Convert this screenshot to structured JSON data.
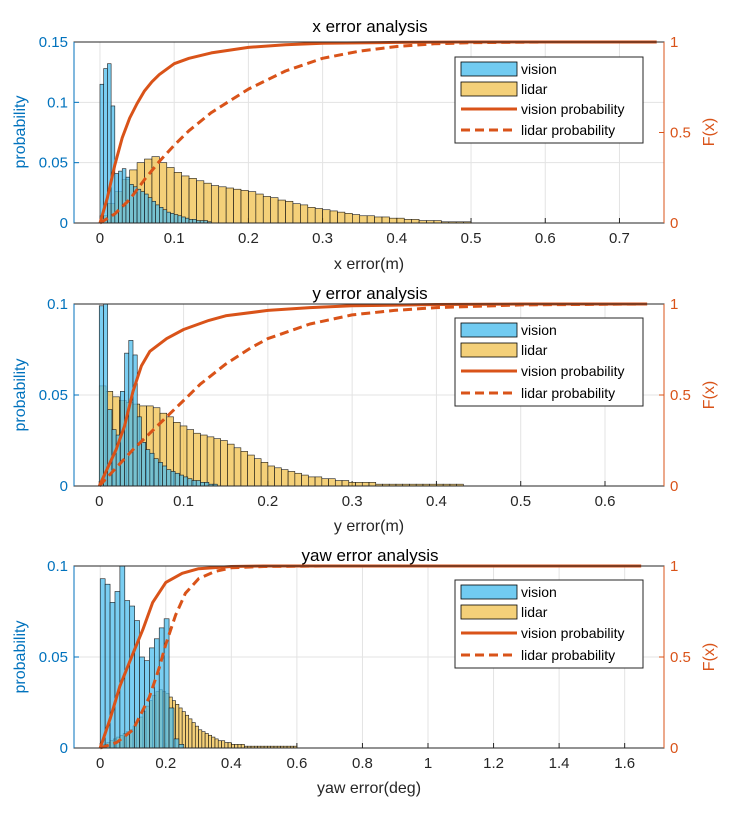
{
  "chart_data": [
    {
      "type": "bar",
      "title": "x error analysis",
      "xlabel": "x error(m)",
      "ylabel": "probability",
      "y2label": "F(x)",
      "xlim": [
        -0.035,
        0.76
      ],
      "ylim": [
        0,
        0.15
      ],
      "y2lim": [
        0,
        1
      ],
      "xticks": [
        "0",
        "0.1",
        "0.2",
        "0.3",
        "0.4",
        "0.5",
        "0.6",
        "0.7"
      ],
      "yticks": [
        "0",
        "0.05",
        "0.1",
        "0.15"
      ],
      "y2ticks": [
        "0",
        "0.5",
        "1"
      ],
      "grid": true,
      "legend_position": "top-right",
      "colors": {
        "vision": "#4DBEEE",
        "lidar": "#EDB120",
        "cdf": "#D95319",
        "left_axis": "#0072BD"
      },
      "series": [
        {
          "name": "vision",
          "kind": "histogram",
          "bin_start": 0,
          "bin_width": 0.005,
          "values": [
            0.115,
            0.128,
            0.132,
            0.097,
            0.041,
            0.043,
            0.045,
            0.038,
            0.032,
            0.03,
            0.028,
            0.026,
            0.024,
            0.021,
            0.018,
            0.015,
            0.013,
            0.011,
            0.009,
            0.008,
            0.007,
            0.006,
            0.005,
            0.004,
            0.003,
            0.003,
            0.002,
            0.002,
            0.002,
            0.001
          ]
        },
        {
          "name": "lidar",
          "kind": "histogram",
          "bin_start": 0,
          "bin_width": 0.01,
          "values": [
            0.006,
            0.016,
            0.026,
            0.036,
            0.044,
            0.05,
            0.053,
            0.055,
            0.05,
            0.046,
            0.042,
            0.039,
            0.037,
            0.035,
            0.033,
            0.031,
            0.03,
            0.029,
            0.028,
            0.027,
            0.026,
            0.024,
            0.022,
            0.021,
            0.019,
            0.018,
            0.016,
            0.015,
            0.013,
            0.012,
            0.011,
            0.01,
            0.009,
            0.008,
            0.007,
            0.006,
            0.006,
            0.005,
            0.005,
            0.004,
            0.004,
            0.003,
            0.003,
            0.002,
            0.002,
            0.002,
            0.001,
            0.001,
            0.001,
            0.001
          ]
        },
        {
          "name": "vision probability",
          "kind": "cdf",
          "style": "solid",
          "points": [
            [
              0,
              0
            ],
            [
              0.01,
              0.14
            ],
            [
              0.02,
              0.32
            ],
            [
              0.03,
              0.47
            ],
            [
              0.04,
              0.58
            ],
            [
              0.05,
              0.66
            ],
            [
              0.06,
              0.73
            ],
            [
              0.07,
              0.78
            ],
            [
              0.08,
              0.82
            ],
            [
              0.1,
              0.88
            ],
            [
              0.12,
              0.91
            ],
            [
              0.15,
              0.94
            ],
            [
              0.2,
              0.97
            ],
            [
              0.25,
              0.985
            ],
            [
              0.3,
              0.993
            ],
            [
              0.4,
              0.998
            ],
            [
              0.5,
              1.0
            ],
            [
              0.75,
              1.0
            ]
          ]
        },
        {
          "name": "lidar probability",
          "kind": "cdf",
          "style": "dashed",
          "points": [
            [
              0,
              0
            ],
            [
              0.02,
              0.05
            ],
            [
              0.04,
              0.13
            ],
            [
              0.06,
              0.24
            ],
            [
              0.08,
              0.34
            ],
            [
              0.1,
              0.43
            ],
            [
              0.12,
              0.51
            ],
            [
              0.15,
              0.61
            ],
            [
              0.2,
              0.74
            ],
            [
              0.25,
              0.84
            ],
            [
              0.3,
              0.91
            ],
            [
              0.35,
              0.95
            ],
            [
              0.4,
              0.975
            ],
            [
              0.45,
              0.99
            ],
            [
              0.5,
              0.996
            ],
            [
              0.6,
              1.0
            ],
            [
              0.75,
              1.0
            ]
          ]
        }
      ]
    },
    {
      "type": "bar",
      "title": "y error analysis",
      "xlabel": "y error(m)",
      "ylabel": "probability",
      "y2label": "F(x)",
      "xlim": [
        -0.03,
        0.67
      ],
      "ylim": [
        0,
        0.1
      ],
      "y2lim": [
        0,
        1
      ],
      "xticks": [
        "0",
        "0.1",
        "0.2",
        "0.3",
        "0.4",
        "0.5",
        "0.6"
      ],
      "yticks": [
        "0",
        "0.05",
        "0.1"
      ],
      "y2ticks": [
        "0",
        "0.5",
        "1"
      ],
      "grid": true,
      "legend_position": "top-right",
      "colors": {
        "vision": "#4DBEEE",
        "lidar": "#EDB120",
        "cdf": "#D95319",
        "left_axis": "#0072BD"
      },
      "series": [
        {
          "name": "vision",
          "kind": "histogram",
          "bin_start": 0,
          "bin_width": 0.005,
          "values": [
            0.099,
            0.101,
            0.042,
            0.031,
            0.028,
            0.052,
            0.073,
            0.08,
            0.072,
            0.038,
            0.024,
            0.02,
            0.018,
            0.015,
            0.013,
            0.011,
            0.009,
            0.008,
            0.007,
            0.006,
            0.005,
            0.004,
            0.003,
            0.003,
            0.002,
            0.002,
            0.001,
            0.001
          ]
        },
        {
          "name": "lidar",
          "kind": "histogram",
          "bin_start": 0,
          "bin_width": 0.008,
          "values": [
            0.055,
            0.052,
            0.049,
            0.047,
            0.046,
            0.045,
            0.044,
            0.044,
            0.043,
            0.04,
            0.038,
            0.035,
            0.033,
            0.031,
            0.029,
            0.028,
            0.027,
            0.026,
            0.025,
            0.023,
            0.021,
            0.019,
            0.017,
            0.015,
            0.013,
            0.011,
            0.01,
            0.009,
            0.008,
            0.007,
            0.006,
            0.005,
            0.005,
            0.004,
            0.004,
            0.003,
            0.003,
            0.002,
            0.002,
            0.002,
            0.002,
            0.001,
            0.001,
            0.001,
            0.001,
            0.001,
            0.001,
            0.001,
            0.001,
            0.001,
            0.001,
            0.001,
            0.001,
            0.001
          ]
        },
        {
          "name": "vision probability",
          "kind": "cdf",
          "style": "solid",
          "points": [
            [
              0,
              0
            ],
            [
              0.01,
              0.1
            ],
            [
              0.02,
              0.2
            ],
            [
              0.03,
              0.33
            ],
            [
              0.04,
              0.52
            ],
            [
              0.05,
              0.66
            ],
            [
              0.06,
              0.74
            ],
            [
              0.08,
              0.81
            ],
            [
              0.1,
              0.86
            ],
            [
              0.13,
              0.91
            ],
            [
              0.15,
              0.935
            ],
            [
              0.2,
              0.965
            ],
            [
              0.25,
              0.98
            ],
            [
              0.3,
              0.99
            ],
            [
              0.4,
              0.997
            ],
            [
              0.5,
              1.0
            ],
            [
              0.65,
              1.0
            ]
          ]
        },
        {
          "name": "lidar probability",
          "kind": "cdf",
          "style": "dashed",
          "points": [
            [
              0,
              0
            ],
            [
              0.02,
              0.1
            ],
            [
              0.04,
              0.2
            ],
            [
              0.06,
              0.29
            ],
            [
              0.08,
              0.38
            ],
            [
              0.1,
              0.47
            ],
            [
              0.12,
              0.56
            ],
            [
              0.15,
              0.67
            ],
            [
              0.18,
              0.76
            ],
            [
              0.2,
              0.81
            ],
            [
              0.25,
              0.89
            ],
            [
              0.3,
              0.94
            ],
            [
              0.35,
              0.965
            ],
            [
              0.4,
              0.98
            ],
            [
              0.5,
              0.995
            ],
            [
              0.65,
              1.0
            ]
          ]
        }
      ]
    },
    {
      "type": "bar",
      "title": "yaw error analysis",
      "xlabel": "yaw error(deg)",
      "ylabel": "probability",
      "y2label": "F(x)",
      "xlim": [
        -0.08,
        1.72
      ],
      "ylim": [
        0,
        0.1
      ],
      "y2lim": [
        0,
        1
      ],
      "xticks": [
        "0",
        "0.2",
        "0.4",
        "0.6",
        "0.8",
        "1",
        "1.2",
        "1.4",
        "1.6"
      ],
      "yticks": [
        "0",
        "0.05",
        "0.1"
      ],
      "y2ticks": [
        "0",
        "0.5",
        "1"
      ],
      "grid": true,
      "legend_position": "top-right",
      "colors": {
        "vision": "#4DBEEE",
        "lidar": "#EDB120",
        "cdf": "#D95319",
        "left_axis": "#0072BD"
      },
      "series": [
        {
          "name": "vision",
          "kind": "histogram",
          "bin_start": 0,
          "bin_width": 0.015,
          "values": [
            0.093,
            0.09,
            0.08,
            0.086,
            0.105,
            0.081,
            0.078,
            0.07,
            0.05,
            0.048,
            0.055,
            0.06,
            0.066,
            0.071,
            0.022,
            0.005,
            0.002
          ]
        },
        {
          "name": "lidar",
          "kind": "histogram",
          "bin_start": 0,
          "bin_width": 0.01,
          "values": [
            0.001,
            0.002,
            0.003,
            0.004,
            0.005,
            0.006,
            0.007,
            0.008,
            0.009,
            0.01,
            0.012,
            0.014,
            0.017,
            0.02,
            0.023,
            0.026,
            0.029,
            0.031,
            0.032,
            0.031,
            0.03,
            0.028,
            0.026,
            0.024,
            0.022,
            0.02,
            0.018,
            0.016,
            0.014,
            0.012,
            0.01,
            0.009,
            0.008,
            0.007,
            0.006,
            0.005,
            0.004,
            0.004,
            0.003,
            0.003,
            0.002,
            0.002,
            0.002,
            0.002,
            0.001,
            0.001,
            0.001,
            0.001,
            0.001,
            0.001,
            0.001,
            0.001,
            0.001,
            0.001,
            0.001,
            0.001,
            0.001,
            0.001,
            0.001,
            0.001
          ]
        },
        {
          "name": "vision probability",
          "kind": "cdf",
          "style": "solid",
          "points": [
            [
              0,
              0
            ],
            [
              0.03,
              0.16
            ],
            [
              0.06,
              0.34
            ],
            [
              0.1,
              0.52
            ],
            [
              0.13,
              0.65
            ],
            [
              0.16,
              0.8
            ],
            [
              0.2,
              0.91
            ],
            [
              0.25,
              0.96
            ],
            [
              0.3,
              0.985
            ],
            [
              0.4,
              0.997
            ],
            [
              0.5,
              1.0
            ],
            [
              1.65,
              1.0
            ]
          ]
        },
        {
          "name": "lidar probability",
          "kind": "cdf",
          "style": "dashed",
          "points": [
            [
              0,
              0
            ],
            [
              0.05,
              0.03
            ],
            [
              0.1,
              0.1
            ],
            [
              0.15,
              0.28
            ],
            [
              0.18,
              0.44
            ],
            [
              0.2,
              0.57
            ],
            [
              0.23,
              0.73
            ],
            [
              0.26,
              0.85
            ],
            [
              0.3,
              0.93
            ],
            [
              0.35,
              0.97
            ],
            [
              0.4,
              0.99
            ],
            [
              0.5,
              0.997
            ],
            [
              0.7,
              1.0
            ],
            [
              1.65,
              1.0
            ]
          ]
        }
      ]
    }
  ]
}
